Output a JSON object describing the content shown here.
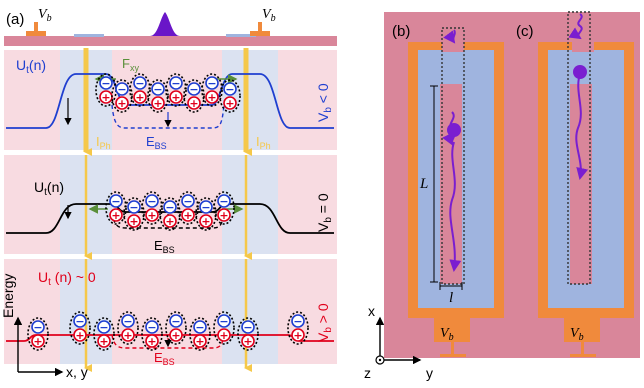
{
  "panels": {
    "a": {
      "label": "(a)"
    },
    "b": {
      "label": "(b)"
    },
    "c": {
      "label": "(c)"
    }
  },
  "top_strip": {
    "vb_left": {
      "main": "V",
      "sub": "b"
    },
    "vb_right": {
      "main": "V",
      "sub": "b"
    }
  },
  "rows": [
    {
      "condition": "V_b < 0",
      "condition_main": "V",
      "condition_sub": "b",
      "condition_rest": " < 0",
      "condition_color": "#1f3fd0",
      "ut_main": "U",
      "ut_sub": "t",
      "ut_rest": "(n)",
      "ut_color": "#1f3fd0",
      "ebs_main": "E",
      "ebs_sub": "BS",
      "ebs_color": "#1f3fd0",
      "fxy_main": "F",
      "fxy_sub": "xy",
      "iph_left": {
        "main": "I",
        "sub": "Ph"
      },
      "iph_right": {
        "main": "I",
        "sub": "Ph"
      }
    },
    {
      "condition": "V_b = 0",
      "condition_main": "V",
      "condition_sub": "b",
      "condition_rest": " = 0",
      "condition_color": "#000000",
      "ut_main": "U",
      "ut_sub": "t",
      "ut_rest": "(n)",
      "ut_color": "#000000",
      "ebs_main": "E",
      "ebs_sub": "BS",
      "ebs_color": "#000000"
    },
    {
      "condition": "V_b > 0",
      "condition_main": "V",
      "condition_sub": "b",
      "condition_rest": " > 0",
      "condition_color": "#e0001b",
      "ut_main": "U",
      "ut_sub": "t",
      "ut_rest": " (n) ~ 0",
      "ut_color": "#e0001b",
      "ebs_main": "E",
      "ebs_sub": "BS",
      "ebs_color": "#e0001b"
    }
  ],
  "axes_a": {
    "energy": "Energy",
    "xy": "x, y"
  },
  "panel_b": {
    "L": "L",
    "l": "l"
  },
  "device_b": {
    "vb_main": "V",
    "vb_sub": "b"
  },
  "device_c": {
    "vb_main": "V",
    "vb_sub": "b"
  },
  "axes_bc": {
    "x": "x",
    "y": "y",
    "z": "z"
  },
  "colors": {
    "substrate": "#d9869a",
    "electrode": "#f08a3c",
    "channel": "#9fb4df",
    "row_bg": "#f8dbe1",
    "row_band": "#dbe2f1",
    "photocurrent": "#f5c84a",
    "exciton_hole": "#e0001b",
    "exciton_electron": "#1f3fd0",
    "force_arrow": "#5a8f3a",
    "exciton_path": "#8a1ee0"
  }
}
